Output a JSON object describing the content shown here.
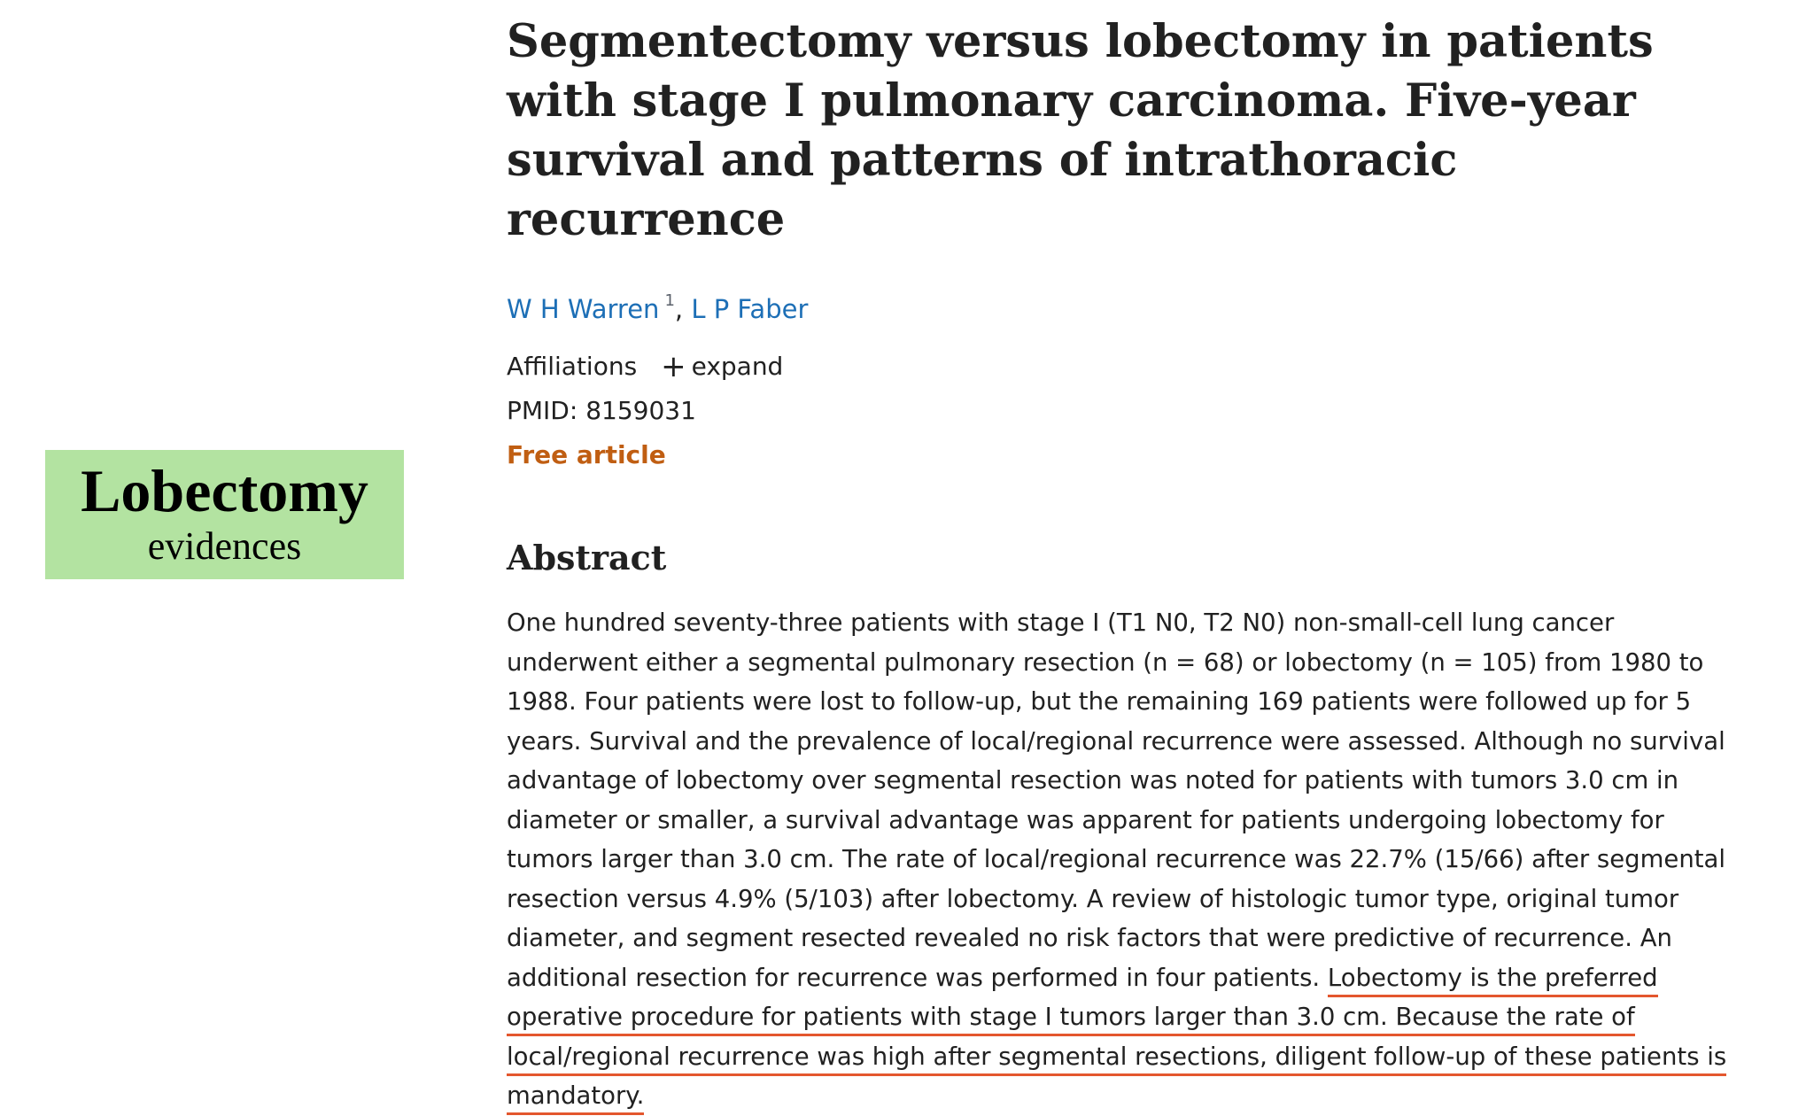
{
  "side_label": {
    "title": "Lobectomy",
    "subtitle": "evidences"
  },
  "article": {
    "title": "Segmentectomy versus lobectomy in patients with stage I pulmonary carcinoma. Five-year survival and patterns of intrathoracic recurrence",
    "authors": [
      {
        "name": "W H Warren",
        "affiliation_mark": "1"
      },
      {
        "name": "L P Faber"
      }
    ],
    "author_separator": ",",
    "affiliations_label": "Affiliations",
    "expand_icon": "plus-icon",
    "expand_label": "expand",
    "pmid_label": "PMID:",
    "pmid": "8159031",
    "free_label": "Free article",
    "abstract_heading": "Abstract",
    "abstract_text": "One hundred seventy-three patients with stage I (T1 N0, T2 N0) non-small-cell lung cancer underwent either a segmental pulmonary resection (n = 68) or lobectomy (n = 105) from 1980 to 1988. Four patients were lost to follow-up, but the remaining 169 patients were followed up for 5 years. Survival and the prevalence of local/regional recurrence were assessed. Although no survival advantage of lobectomy over segmental resection was noted for patients with tumors 3.0 cm in diameter or smaller, a survival advantage was apparent for patients undergoing lobectomy for tumors larger than 3.0 cm. The rate of local/regional recurrence was 22.7% (15/66) after segmental resection versus 4.9% (5/103) after lobectomy. A review of histologic tumor type, original tumor diameter, and segment resected revealed no risk factors that were predictive of recurrence. An additional resection for recurrence was performed in four patients.",
    "abstract_highlight": "Lobectomy is the preferred operative procedure for patients with stage I tumors larger than 3.0 cm. Because the rate of local/regional recurrence was high after segmental resections, diligent follow-up of these patients is mandatory."
  },
  "colors": {
    "label_background": "#b3e3a1",
    "author_link": "#1d6fb6",
    "free_article": "#c05e12",
    "underline": "#e4572e"
  }
}
